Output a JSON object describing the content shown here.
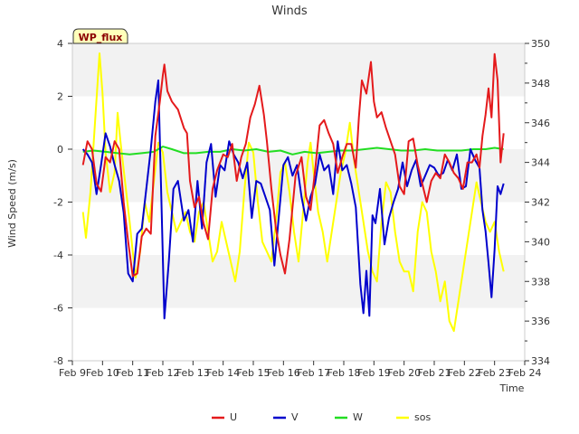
{
  "chart_data": {
    "type": "line",
    "title": "Winds",
    "xlabel": "Time",
    "ylabel": "Wind Speed (m/s)",
    "badge": "WP_flux",
    "xlim": [
      9,
      24
    ],
    "ylim": [
      -8,
      4
    ],
    "y2lim": [
      334,
      350
    ],
    "x_ticks": [
      {
        "v": 9,
        "label": "Feb 9"
      },
      {
        "v": 10,
        "label": "Feb 10"
      },
      {
        "v": 11,
        "label": "Feb 11"
      },
      {
        "v": 12,
        "label": "Feb 12"
      },
      {
        "v": 13,
        "label": "Feb 13"
      },
      {
        "v": 14,
        "label": "Feb 14"
      },
      {
        "v": 15,
        "label": "Feb 15"
      },
      {
        "v": 16,
        "label": "Feb 16"
      },
      {
        "v": 17,
        "label": "Feb 17"
      },
      {
        "v": 18,
        "label": "Feb 18"
      },
      {
        "v": 19,
        "label": "Feb 19"
      },
      {
        "v": 20,
        "label": "Feb 20"
      },
      {
        "v": 21,
        "label": "Feb 21"
      },
      {
        "v": 22,
        "label": "Feb 22"
      },
      {
        "v": 23,
        "label": "Feb 23"
      },
      {
        "v": 24,
        "label": "Feb 24"
      }
    ],
    "y_ticks": [
      {
        "v": -8,
        "label": "-8"
      },
      {
        "v": -6,
        "label": "-6"
      },
      {
        "v": -4,
        "label": "-4"
      },
      {
        "v": -2,
        "label": "-2"
      },
      {
        "v": 0,
        "label": "0"
      },
      {
        "v": 2,
        "label": "2"
      },
      {
        "v": 4,
        "label": "4"
      }
    ],
    "y2_ticks": [
      {
        "v": 334,
        "label": "334"
      },
      {
        "v": 336,
        "label": "336"
      },
      {
        "v": 338,
        "label": "338"
      },
      {
        "v": 340,
        "label": "340"
      },
      {
        "v": 342,
        "label": "342"
      },
      {
        "v": 344,
        "label": "344"
      },
      {
        "v": 346,
        "label": "346"
      },
      {
        "v": 348,
        "label": "348"
      },
      {
        "v": 350,
        "label": "350"
      }
    ],
    "legend_position": "bottom-center",
    "series": [
      {
        "name": "U",
        "axis": "left",
        "color": "#e41a1c",
        "x": [
          9.35,
          9.5,
          9.65,
          9.8,
          9.95,
          10.1,
          10.25,
          10.4,
          10.55,
          10.7,
          10.85,
          11.0,
          11.15,
          11.3,
          11.45,
          11.6,
          11.75,
          11.9,
          12.0,
          12.05,
          12.15,
          12.3,
          12.5,
          12.7,
          12.8,
          12.9,
          13.05,
          13.2,
          13.35,
          13.5,
          13.65,
          13.8,
          14.0,
          14.15,
          14.3,
          14.45,
          14.6,
          14.75,
          14.9,
          15.05,
          15.2,
          15.35,
          15.45,
          15.6,
          15.75,
          15.9,
          16.05,
          16.2,
          16.4,
          16.6,
          16.75,
          16.9,
          17.05,
          17.2,
          17.35,
          17.5,
          17.65,
          17.8,
          17.95,
          18.1,
          18.25,
          18.4,
          18.5,
          18.6,
          18.75,
          18.9,
          19.0,
          19.1,
          19.25,
          19.4,
          19.55,
          19.7,
          19.85,
          20.0,
          20.15,
          20.3,
          20.45,
          20.6,
          20.75,
          20.9,
          21.05,
          21.2,
          21.35,
          21.5,
          21.65,
          21.8,
          21.95,
          22.1,
          22.25,
          22.4,
          22.5,
          22.6,
          22.7,
          22.8,
          22.9,
          23.0,
          23.1,
          23.2,
          23.3
        ],
        "y": [
          -0.6,
          0.3,
          0.0,
          -1.3,
          -1.6,
          -0.3,
          -0.5,
          0.3,
          0.0,
          -2.0,
          -3.5,
          -4.8,
          -4.7,
          -3.3,
          -3.0,
          -3.2,
          0.5,
          1.8,
          2.8,
          3.2,
          2.2,
          1.8,
          1.5,
          0.8,
          0.6,
          -1.2,
          -2.2,
          -1.8,
          -2.8,
          -3.4,
          -1.5,
          -0.8,
          -0.2,
          -0.3,
          0.2,
          -1.2,
          -0.3,
          0.2,
          1.2,
          1.7,
          2.4,
          1.3,
          0.3,
          -1.5,
          -3.0,
          -4.0,
          -4.7,
          -3.4,
          -1.0,
          -0.3,
          -1.8,
          -2.3,
          -0.8,
          0.9,
          1.1,
          0.6,
          0.2,
          -0.9,
          -0.3,
          0.2,
          0.2,
          -0.7,
          1.2,
          2.6,
          2.1,
          3.3,
          1.8,
          1.2,
          1.4,
          0.8,
          0.3,
          -0.2,
          -1.4,
          -1.7,
          0.3,
          0.4,
          -0.6,
          -1.3,
          -2.0,
          -1.2,
          -0.9,
          -1.1,
          -0.2,
          -0.5,
          -0.9,
          -1.1,
          -1.5,
          -0.5,
          -0.5,
          -0.2,
          -0.7,
          0.5,
          1.3,
          2.3,
          1.2,
          3.6,
          2.6,
          -0.5,
          0.6
        ]
      },
      {
        "name": "V",
        "axis": "left",
        "color": "#0000cc",
        "x": [
          9.35,
          9.5,
          9.65,
          9.8,
          9.95,
          10.1,
          10.25,
          10.4,
          10.55,
          10.7,
          10.85,
          11.0,
          11.15,
          11.3,
          11.45,
          11.6,
          11.75,
          11.85,
          11.95,
          12.05,
          12.2,
          12.35,
          12.5,
          12.7,
          12.85,
          13.0,
          13.15,
          13.3,
          13.45,
          13.6,
          13.75,
          13.9,
          14.05,
          14.2,
          14.35,
          14.5,
          14.65,
          14.8,
          14.95,
          15.1,
          15.25,
          15.4,
          15.55,
          15.7,
          15.85,
          16.0,
          16.15,
          16.3,
          16.45,
          16.6,
          16.75,
          16.9,
          17.05,
          17.2,
          17.35,
          17.5,
          17.65,
          17.8,
          17.95,
          18.1,
          18.25,
          18.4,
          18.55,
          18.65,
          18.75,
          18.85,
          18.95,
          19.05,
          19.2,
          19.35,
          19.5,
          19.65,
          19.8,
          19.95,
          20.1,
          20.25,
          20.4,
          20.55,
          20.7,
          20.85,
          21.0,
          21.15,
          21.3,
          21.45,
          21.6,
          21.75,
          21.9,
          22.05,
          22.2,
          22.35,
          22.5,
          22.6,
          22.7,
          22.8,
          22.9,
          23.0,
          23.1,
          23.2,
          23.3
        ],
        "y": [
          0.0,
          -0.2,
          -0.5,
          -1.7,
          -0.6,
          0.6,
          0.1,
          -0.6,
          -1.2,
          -2.4,
          -4.7,
          -5.0,
          -3.2,
          -3.0,
          -1.5,
          0.0,
          1.8,
          2.6,
          -1.8,
          -6.4,
          -4.2,
          -1.5,
          -1.2,
          -2.7,
          -2.3,
          -3.5,
          -1.2,
          -3.0,
          -0.5,
          0.2,
          -1.8,
          -0.6,
          -0.8,
          0.3,
          -0.2,
          -0.5,
          -1.1,
          -0.5,
          -2.6,
          -1.2,
          -1.3,
          -1.8,
          -2.3,
          -4.4,
          -2.5,
          -0.6,
          -0.3,
          -1.0,
          -0.6,
          -1.8,
          -2.7,
          -1.8,
          -1.3,
          -0.2,
          -0.8,
          -0.6,
          -1.7,
          0.3,
          -0.8,
          -0.6,
          -1.3,
          -2.2,
          -5.1,
          -6.2,
          -4.6,
          -6.3,
          -2.5,
          -2.8,
          -1.5,
          -3.6,
          -2.6,
          -2.0,
          -1.5,
          -0.5,
          -1.4,
          -0.8,
          -0.4,
          -1.4,
          -1.0,
          -0.6,
          -0.7,
          -1.0,
          -0.9,
          -0.4,
          -0.8,
          -0.2,
          -1.5,
          -1.4,
          0.0,
          -0.4,
          -0.7,
          -2.3,
          -3.1,
          -4.3,
          -5.6,
          -3.8,
          -1.4,
          -1.7,
          -1.3
        ]
      },
      {
        "name": "W",
        "axis": "left",
        "color": "#22dd22",
        "x": [
          9.35,
          9.7,
          10.1,
          10.5,
          10.9,
          11.3,
          11.7,
          12.0,
          12.3,
          12.7,
          13.1,
          13.5,
          13.9,
          14.3,
          14.7,
          15.1,
          15.5,
          15.9,
          16.3,
          16.7,
          17.1,
          17.5,
          17.9,
          18.3,
          18.7,
          19.1,
          19.5,
          19.9,
          20.3,
          20.7,
          21.1,
          21.5,
          21.9,
          22.3,
          22.7,
          23.0,
          23.3
        ],
        "y": [
          -0.1,
          -0.05,
          -0.1,
          -0.15,
          -0.2,
          -0.15,
          -0.1,
          0.1,
          0.0,
          -0.15,
          -0.15,
          -0.1,
          -0.1,
          0.0,
          -0.05,
          0.0,
          -0.1,
          -0.05,
          -0.2,
          -0.1,
          -0.15,
          -0.1,
          -0.05,
          -0.05,
          0.0,
          0.05,
          0.0,
          -0.05,
          -0.05,
          0.0,
          -0.05,
          -0.05,
          -0.05,
          0.0,
          0.0,
          0.05,
          0.0
        ]
      },
      {
        "name": "sos",
        "axis": "right",
        "color": "#ffff00",
        "x": [
          9.35,
          9.45,
          9.6,
          9.75,
          9.9,
          10.0,
          10.1,
          10.25,
          10.4,
          10.5,
          10.6,
          10.75,
          10.9,
          11.0,
          11.1,
          11.25,
          11.4,
          11.55,
          11.7,
          11.85,
          12.0,
          12.15,
          12.3,
          12.45,
          12.6,
          12.75,
          12.9,
          13.05,
          13.2,
          13.35,
          13.5,
          13.65,
          13.8,
          13.95,
          14.1,
          14.25,
          14.4,
          14.55,
          14.7,
          14.85,
          15.0,
          15.15,
          15.3,
          15.45,
          15.6,
          15.75,
          15.9,
          16.05,
          16.2,
          16.35,
          16.5,
          16.65,
          16.8,
          16.9,
          17.0,
          17.15,
          17.3,
          17.45,
          17.6,
          17.75,
          17.9,
          18.05,
          18.2,
          18.35,
          18.5,
          18.65,
          18.8,
          18.95,
          19.1,
          19.25,
          19.4,
          19.55,
          19.7,
          19.85,
          20.0,
          20.15,
          20.3,
          20.45,
          20.6,
          20.75,
          20.9,
          21.05,
          21.2,
          21.35,
          21.5,
          21.65,
          21.8,
          21.95,
          22.1,
          22.25,
          22.4,
          22.55,
          22.7,
          22.85,
          23.0,
          23.15,
          23.3
        ],
        "y": [
          341.5,
          340.2,
          342.5,
          346.0,
          349.5,
          347.5,
          344.5,
          342.5,
          343.5,
          346.5,
          345.0,
          343.0,
          341.0,
          339.5,
          338.2,
          339.5,
          342.0,
          341.0,
          343.0,
          345.0,
          344.5,
          342.5,
          341.5,
          340.5,
          341.0,
          341.5,
          340.5,
          340.0,
          341.5,
          342.0,
          340.5,
          339.0,
          339.5,
          341.0,
          340.0,
          339.0,
          338.0,
          339.5,
          342.5,
          345.0,
          344.5,
          342.0,
          340.0,
          339.5,
          339.0,
          341.0,
          343.5,
          344.0,
          342.5,
          340.5,
          339.0,
          341.5,
          344.0,
          345.0,
          343.5,
          341.5,
          340.5,
          339.0,
          340.5,
          342.0,
          343.5,
          344.5,
          346.0,
          344.0,
          342.5,
          341.0,
          339.5,
          338.5,
          338.0,
          341.0,
          343.0,
          342.5,
          340.5,
          339.0,
          338.5,
          338.5,
          337.5,
          340.5,
          342.0,
          341.5,
          339.5,
          338.5,
          337.0,
          338.0,
          336.0,
          335.5,
          337.0,
          338.5,
          340.0,
          341.5,
          343.0,
          342.0,
          341.0,
          340.5,
          341.0,
          339.5,
          338.5
        ]
      }
    ]
  }
}
